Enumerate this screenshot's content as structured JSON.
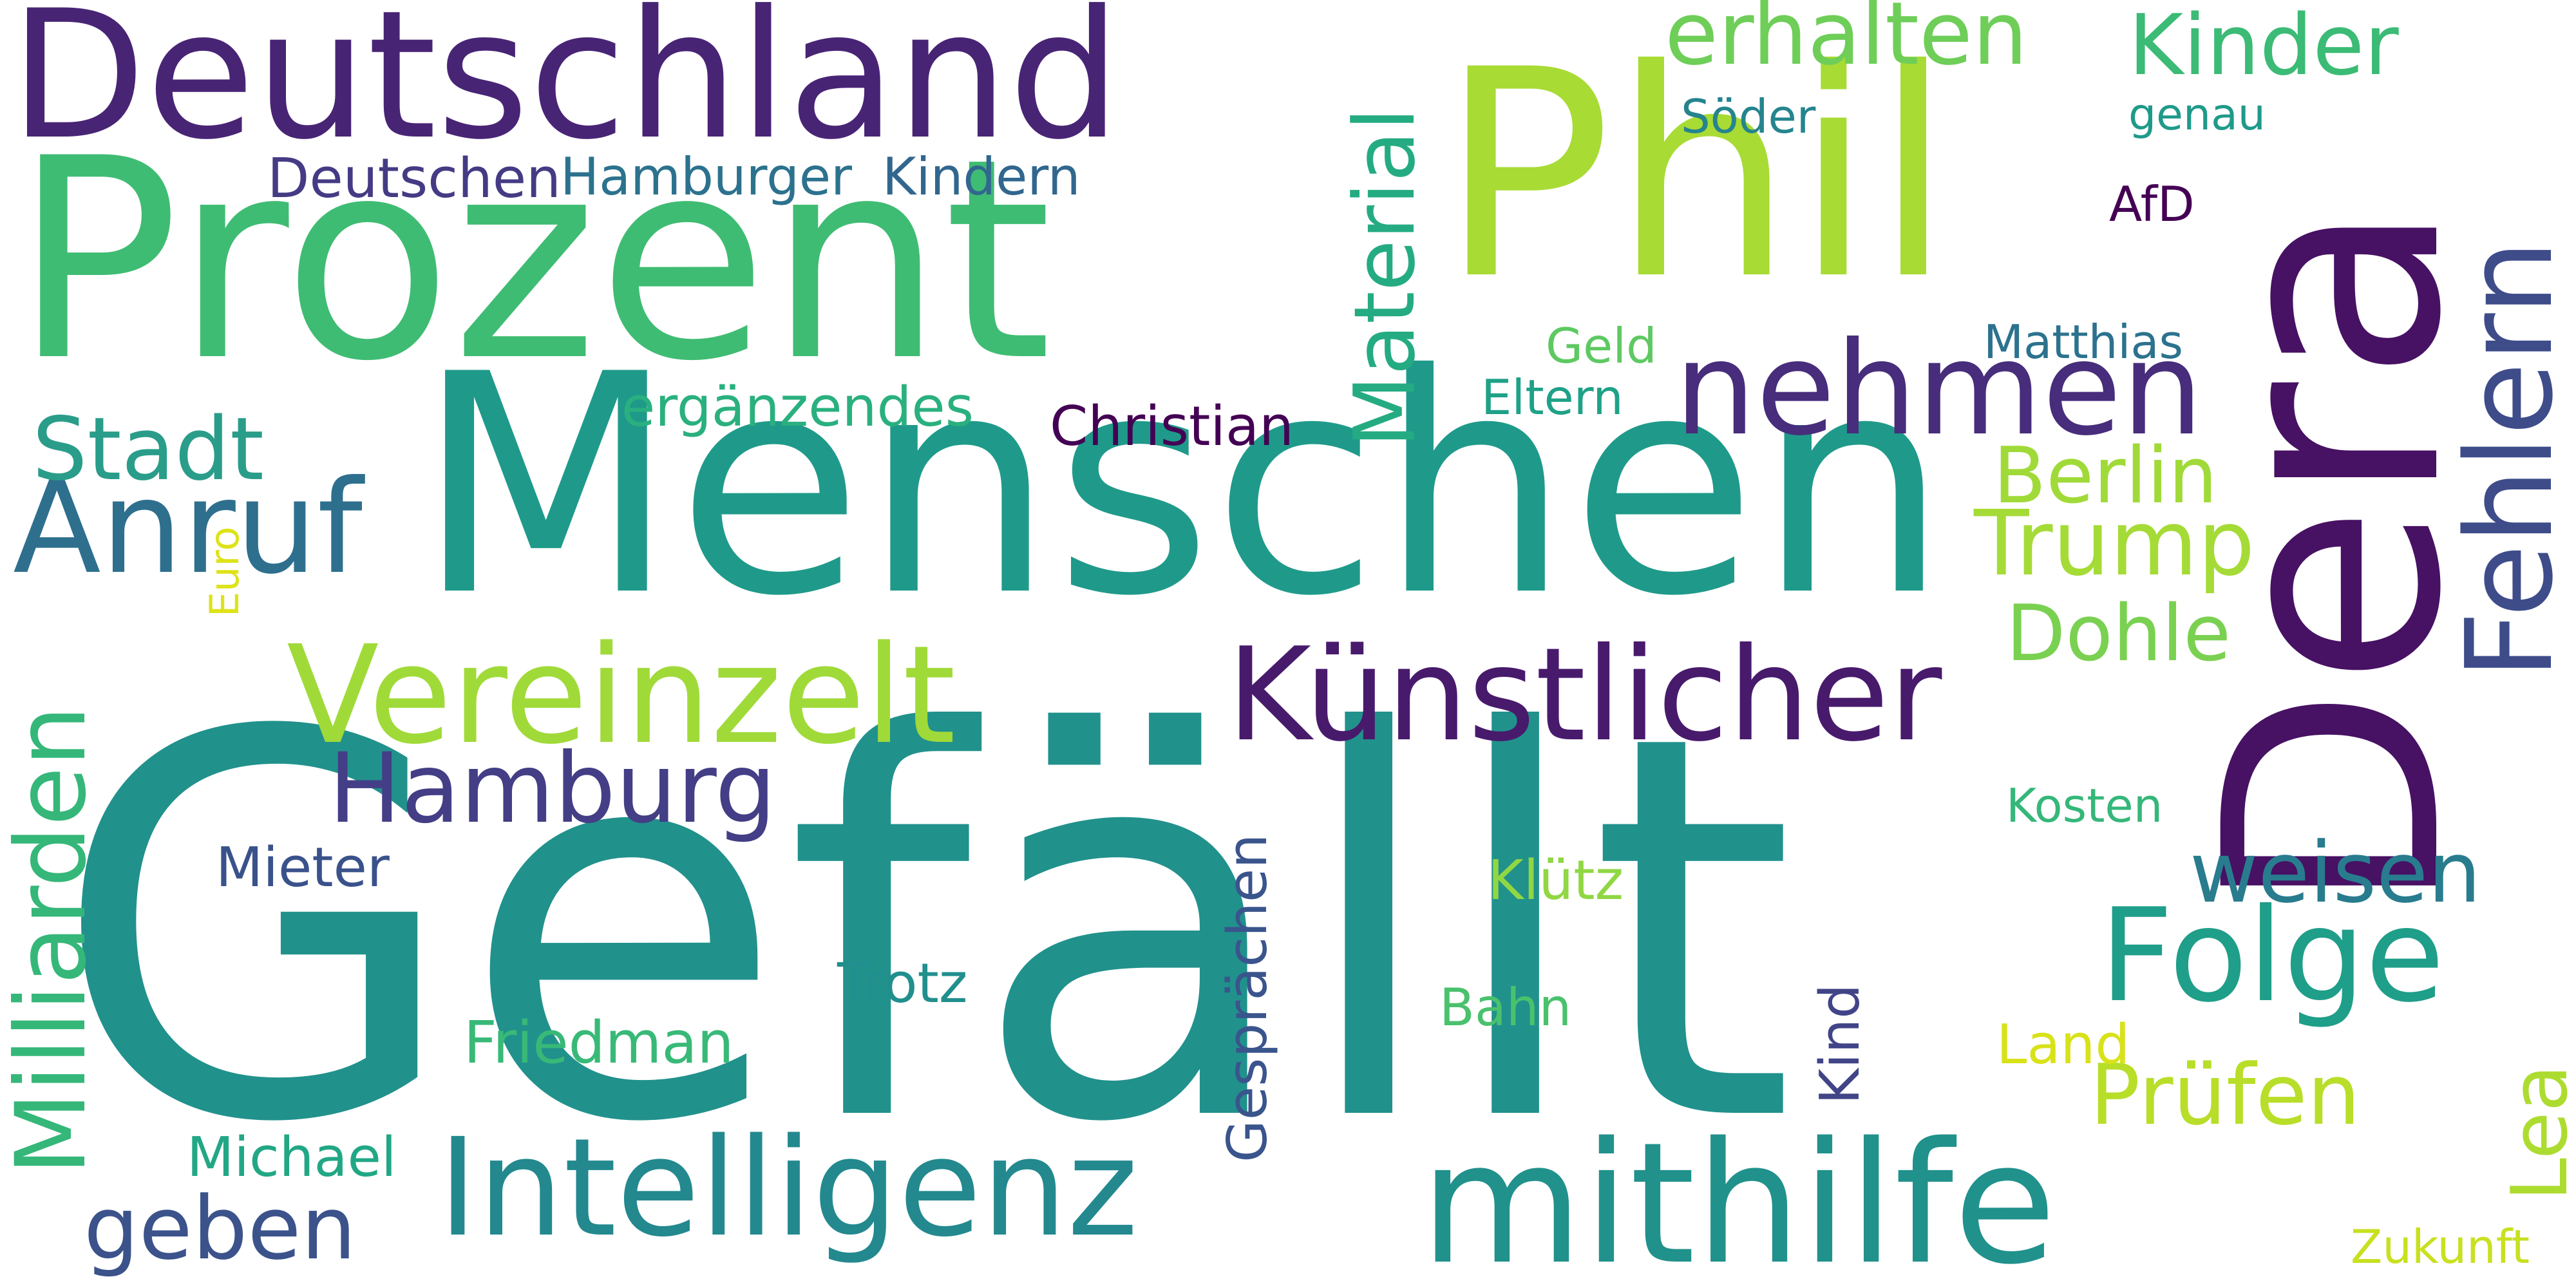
{
  "words": [
    {
      "key": "gefaellt",
      "text": "Gefällt",
      "color": "#21918c"
    },
    {
      "key": "menschen",
      "text": "Menschen",
      "color": "#1f9a8a"
    },
    {
      "key": "prozent",
      "text": "Prozent",
      "color": "#3fbc73"
    },
    {
      "key": "phil",
      "text": "Phil",
      "color": "#a8db34"
    },
    {
      "key": "dera",
      "text": "Dera",
      "color": "#471164"
    },
    {
      "key": "deutschland",
      "text": "Deutschland",
      "color": "#482475"
    },
    {
      "key": "mithilfe",
      "text": "mithilfe",
      "color": "#21918c"
    },
    {
      "key": "intelligenz",
      "text": "Intelligenz",
      "color": "#23898e"
    },
    {
      "key": "kuenstlicher",
      "text": "Künstlicher",
      "color": "#481a6c"
    },
    {
      "key": "vereinzelt",
      "text": "Vereinzelt",
      "color": "#a0da39"
    },
    {
      "key": "fehlern",
      "text": "Fehlern",
      "color": "#3e4c8a"
    },
    {
      "key": "nehmen",
      "text": "nehmen",
      "color": "#472d7b"
    },
    {
      "key": "anruf",
      "text": "Anruf",
      "color": "#2e6f8e"
    },
    {
      "key": "hamburg",
      "text": "Hamburg",
      "color": "#433e85"
    },
    {
      "key": "folge",
      "text": "Folge",
      "color": "#1f9e89"
    },
    {
      "key": "milliarden",
      "text": "Milliarden",
      "color": "#35b779"
    },
    {
      "key": "material",
      "text": "Material",
      "color": "#25ab82"
    },
    {
      "key": "trump",
      "text": "Trump",
      "color": "#a5db36"
    },
    {
      "key": "pruefen",
      "text": "Prüfen",
      "color": "#b8de29"
    },
    {
      "key": "weisen",
      "text": "weisen",
      "color": "#287c8e"
    },
    {
      "key": "kinder",
      "text": "Kinder",
      "color": "#3bbb75"
    },
    {
      "key": "erhalten",
      "text": "erhalten",
      "color": "#6ece58"
    },
    {
      "key": "stadt",
      "text": "Stadt",
      "color": "#2a9d8a"
    },
    {
      "key": "berlin",
      "text": "Berlin",
      "color": "#a0da39"
    },
    {
      "key": "dohle",
      "text": "Dohle",
      "color": "#7ad151"
    },
    {
      "key": "geben",
      "text": "geben",
      "color": "#3b528b"
    },
    {
      "key": "lea",
      "text": "Lea",
      "color": "#addc30"
    },
    {
      "key": "gespraechen",
      "text": "Gesprächen",
      "color": "#3a548c"
    },
    {
      "key": "ergaenzendes",
      "text": "ergänzendes",
      "color": "#2ab07f"
    },
    {
      "key": "friedman",
      "text": "Friedman",
      "color": "#38b977"
    },
    {
      "key": "deutschen",
      "text": "Deutschen",
      "color": "#443b84"
    },
    {
      "key": "hamburger",
      "text": "Hamburger",
      "color": "#2c728e"
    },
    {
      "key": "kindern",
      "text": "Kindern",
      "color": "#31678e"
    },
    {
      "key": "christian",
      "text": "Christian",
      "color": "#440154"
    },
    {
      "key": "mieter",
      "text": "Mieter",
      "color": "#3a528b"
    },
    {
      "key": "michael",
      "text": "Michael",
      "color": "#22a785"
    },
    {
      "key": "trotz",
      "text": "Trotz",
      "color": "#218f8d"
    },
    {
      "key": "kluetz",
      "text": "Klütz",
      "color": "#90d743"
    },
    {
      "key": "bahn",
      "text": "Bahn",
      "color": "#4ac16d"
    },
    {
      "key": "kind",
      "text": "Kind",
      "color": "#414487"
    },
    {
      "key": "land",
      "text": "Land",
      "color": "#d8e219"
    },
    {
      "key": "zukunft",
      "text": "Zukunft",
      "color": "#c8e020"
    },
    {
      "key": "kosten",
      "text": "Kosten",
      "color": "#35b779"
    },
    {
      "key": "geld",
      "text": "Geld",
      "color": "#5ec962"
    },
    {
      "key": "eltern",
      "text": "Eltern",
      "color": "#1fa188"
    },
    {
      "key": "matthias",
      "text": "Matthias",
      "color": "#2c728e"
    },
    {
      "key": "soeder",
      "text": "Söder",
      "color": "#25848e"
    },
    {
      "key": "genau",
      "text": "genau",
      "color": "#1f9a8a"
    },
    {
      "key": "afd",
      "text": "AfD",
      "color": "#440154"
    },
    {
      "key": "euro",
      "text": "Euro",
      "color": "#dde318"
    }
  ]
}
